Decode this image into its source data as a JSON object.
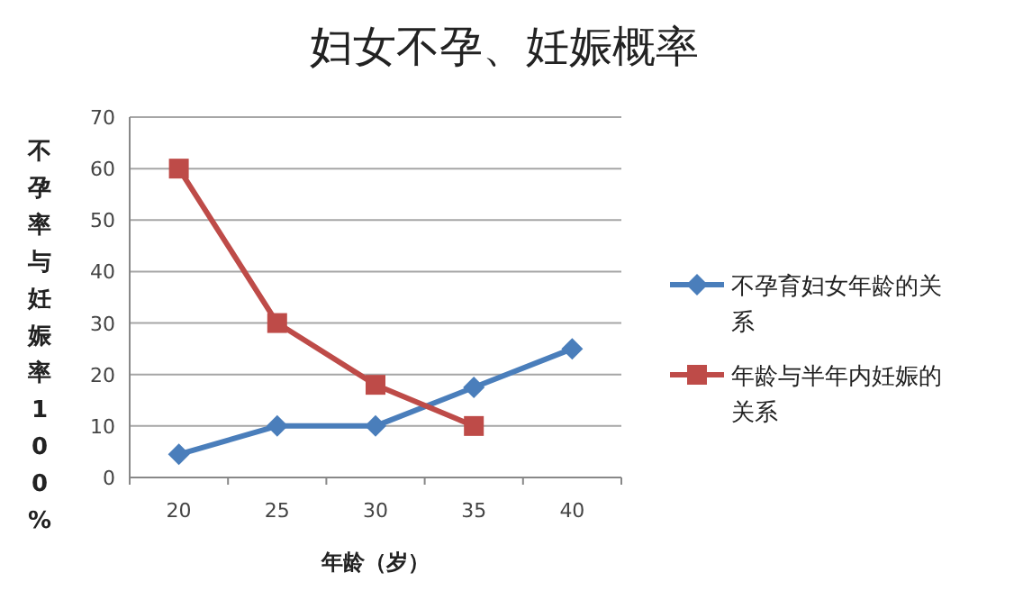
{
  "chart_data": {
    "type": "line",
    "title": "妇女不孕、妊娠概率",
    "xlabel": "年龄（岁）",
    "ylabel": "不孕率与妊娠率100%",
    "categories": [
      "20",
      "25",
      "30",
      "35",
      "40"
    ],
    "series": [
      {
        "name": "不孕育妇女年龄的关系",
        "color": "#4a7ebb",
        "marker": "diamond",
        "values": [
          4.5,
          10,
          10,
          17.5,
          25
        ]
      },
      {
        "name": "年龄与半年内妊娠的关系",
        "color": "#be4b48",
        "marker": "square",
        "values": [
          60,
          30,
          18,
          10,
          null
        ]
      }
    ],
    "ylim": [
      0,
      70
    ],
    "yticks": [
      0,
      10,
      20,
      30,
      40,
      50,
      60,
      70
    ],
    "grid": "y",
    "legend": "right"
  }
}
